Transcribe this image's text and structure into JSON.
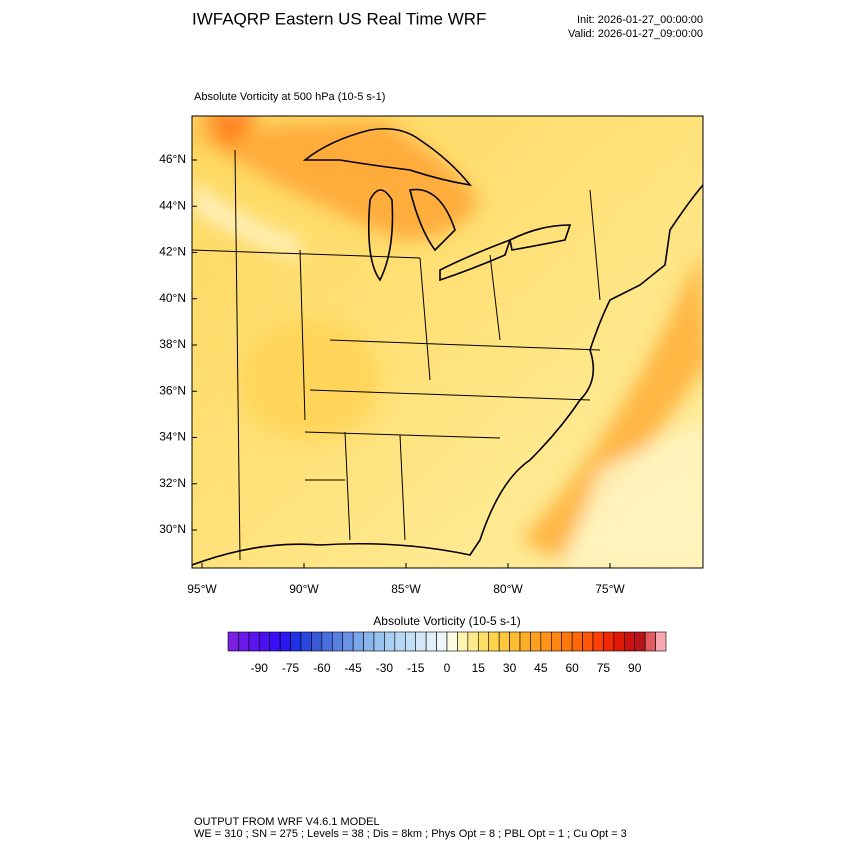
{
  "header": {
    "title": "IWFAQRP Eastern US Real Time WRF",
    "init": "Init: 2026-01-27_00:00:00",
    "valid": "Valid: 2026-01-27_09:00:00"
  },
  "map": {
    "subtitle": "Absolute Vorticity at 500 hPa   (10-5 s-1)",
    "lat_labels": [
      "46°N",
      "44°N",
      "42°N",
      "40°N",
      "38°N",
      "36°N",
      "34°N",
      "32°N",
      "30°N"
    ],
    "lon_labels": [
      "95°W",
      "90°W",
      "85°W",
      "80°W",
      "75°W"
    ]
  },
  "colorbar": {
    "title": "Absolute Vorticity  (10-5 s-1)",
    "ticks": [
      -90,
      -75,
      -60,
      -45,
      -30,
      -15,
      0,
      15,
      30,
      45,
      60,
      75,
      90
    ],
    "colors": [
      "#7b1fe0",
      "#6a1ae8",
      "#5a14ee",
      "#4a10f2",
      "#3a0ef2",
      "#2a18ee",
      "#2030e6",
      "#2c46e0",
      "#3a5ad8",
      "#4a6ede",
      "#5a80e2",
      "#6a92e6",
      "#7aa6ea",
      "#8ab6ee",
      "#98c2f0",
      "#a8cef2",
      "#b6d8f4",
      "#c4e0f6",
      "#d2e8f8",
      "#e0f0fa",
      "#eef6fc",
      "#fffbe0",
      "#fff3b0",
      "#ffe98a",
      "#ffe066",
      "#ffd44a",
      "#ffc83a",
      "#ffbc30",
      "#ffae28",
      "#ffa020",
      "#ff9418",
      "#ff8612",
      "#ff780e",
      "#ff680a",
      "#ff5608",
      "#ff4006",
      "#f02a04",
      "#e01a04",
      "#cc1010",
      "#b81418",
      "#e05a60",
      "#f8a8b0"
    ]
  },
  "footer": {
    "line1": "OUTPUT FROM WRF V4.6.1 MODEL",
    "line2": "WE = 310 ; SN = 275 ; Levels = 38 ; Dis = 8km ; Phys Opt = 8 ; PBL Opt = 1 ; Cu Opt = 3"
  }
}
